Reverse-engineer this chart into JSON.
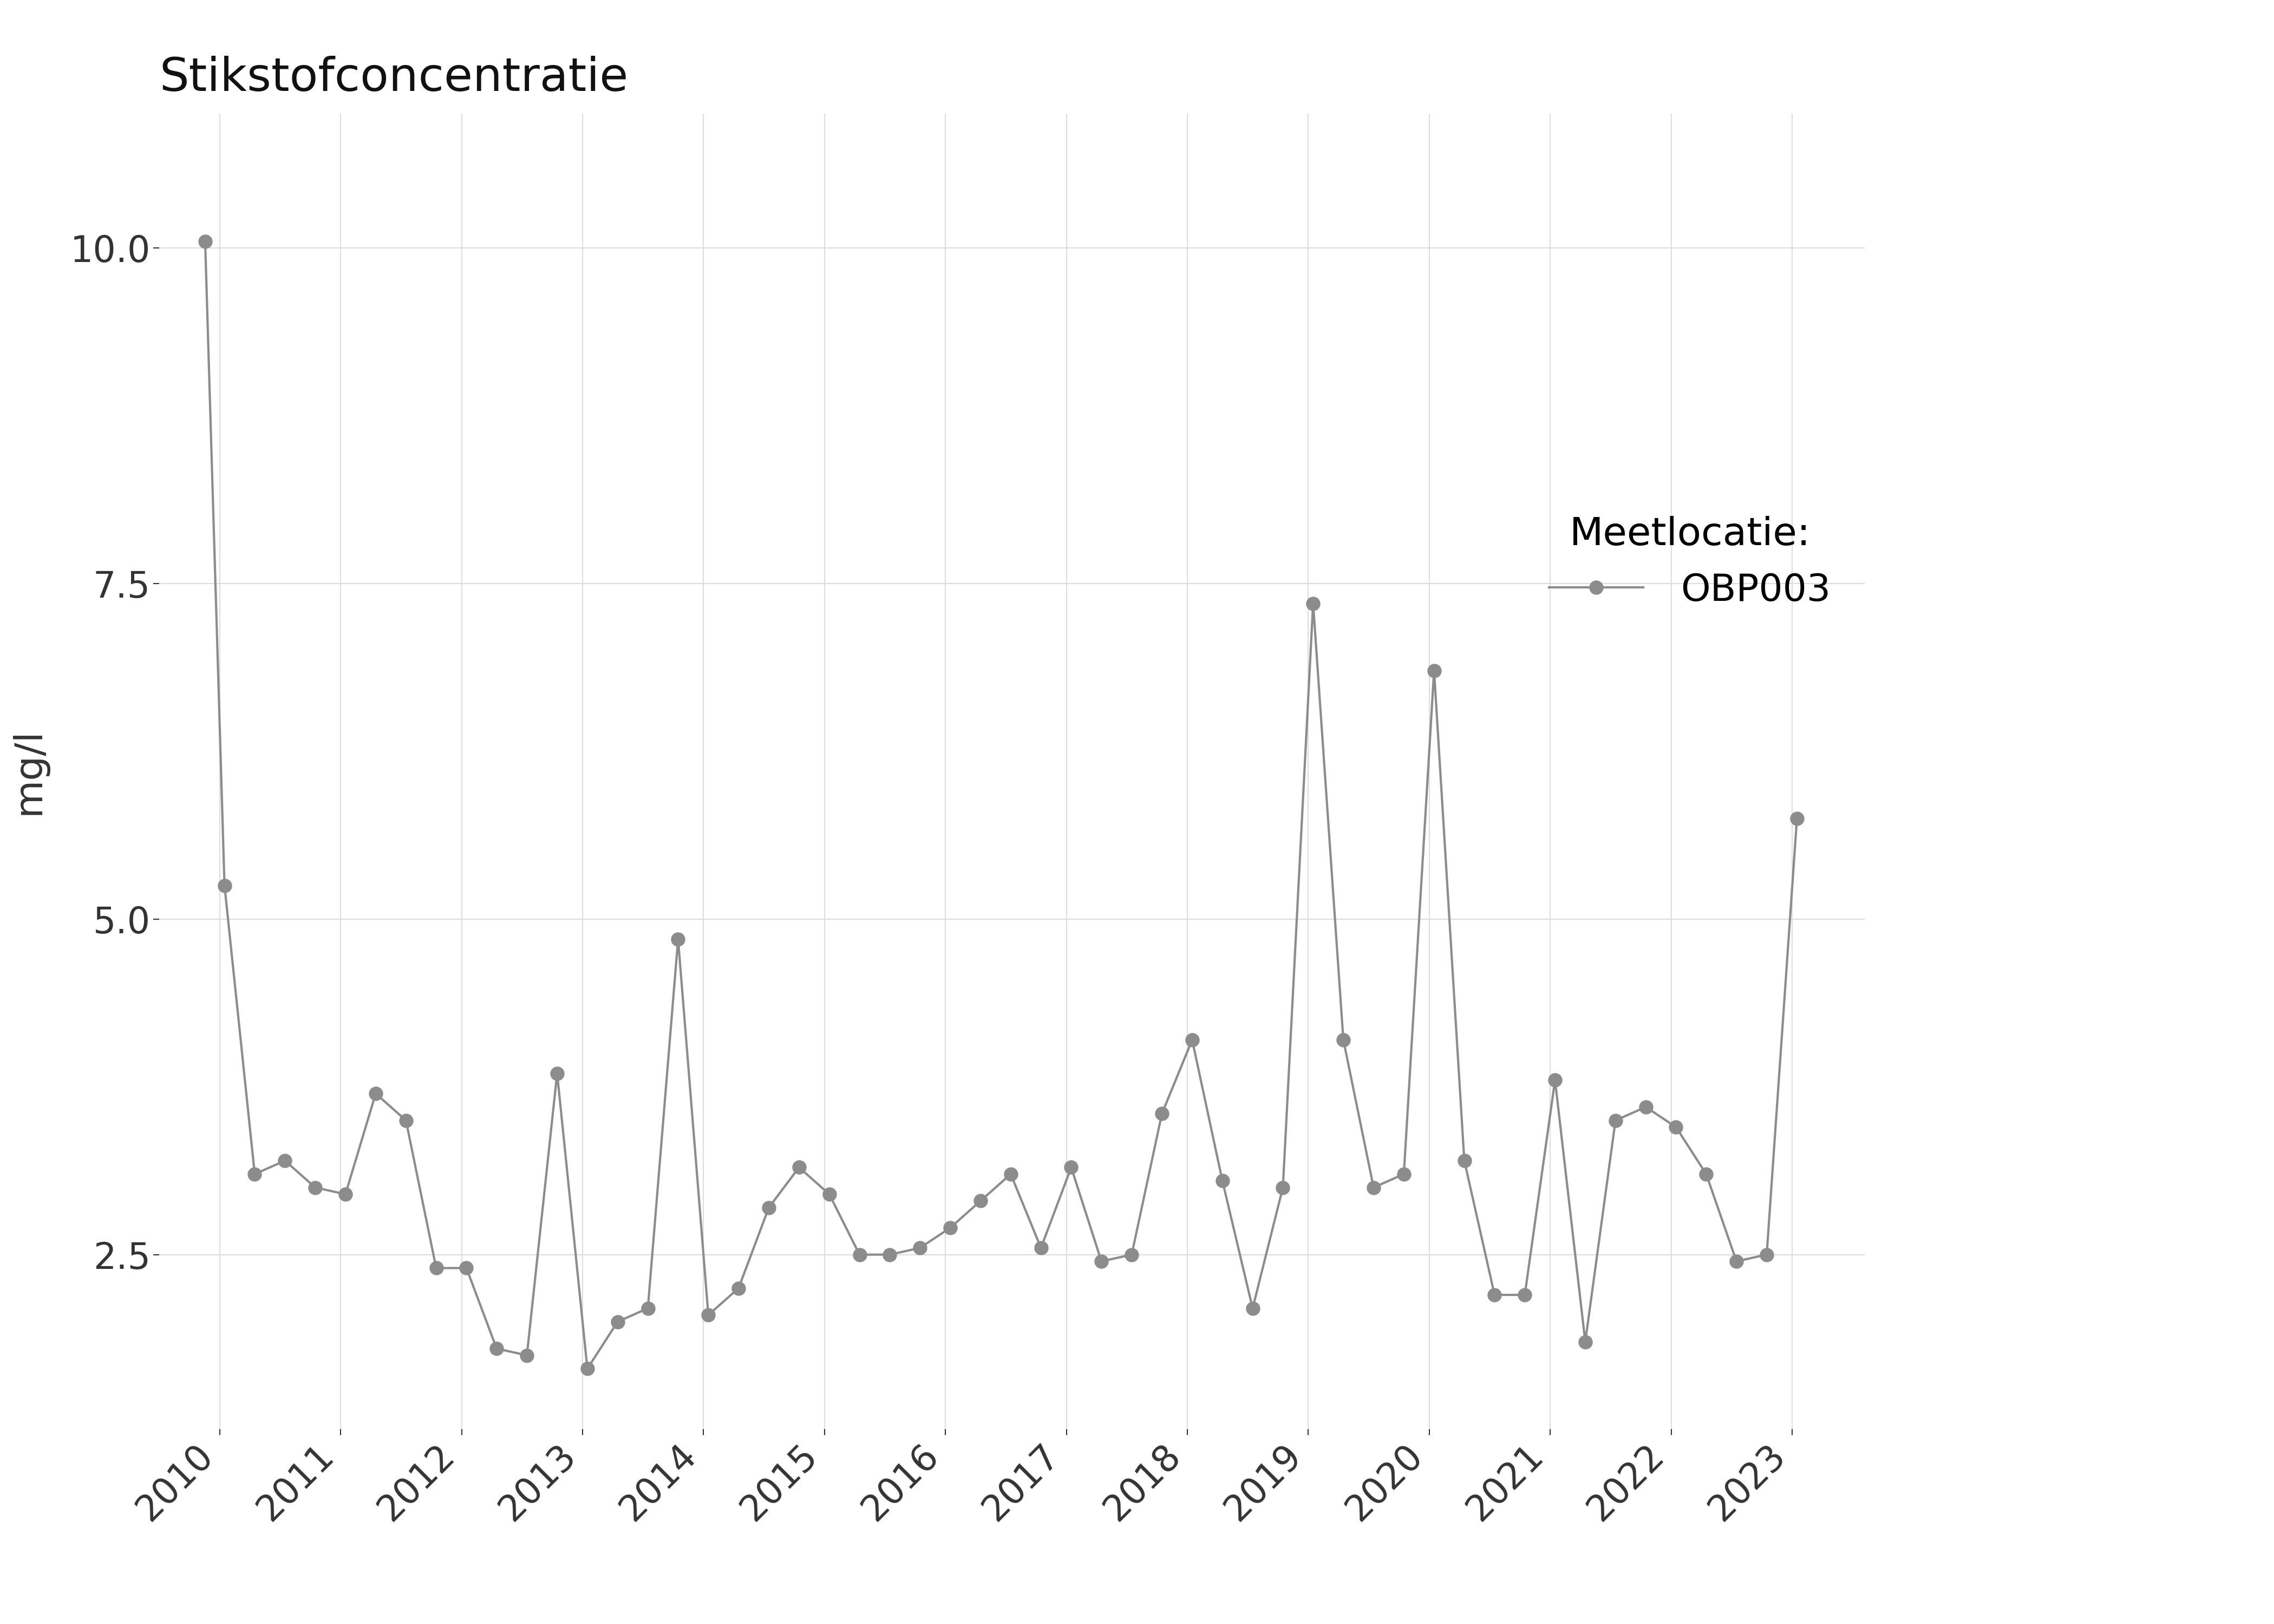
{
  "title": "Stikstofconcentratie",
  "ylabel": "mg/l",
  "legend_title": "Meetlocatie:",
  "legend_label": "OBP003",
  "line_color": "#8c8c8c",
  "marker_color": "#8c8c8c",
  "background_color": "#ffffff",
  "grid_color": "#dddddd",
  "ylim": [
    1.2,
    11.0
  ],
  "yticks": [
    2.5,
    5.0,
    7.5,
    10.0
  ],
  "title_fontsize": 62,
  "label_fontsize": 52,
  "tick_fontsize": 48,
  "legend_fontsize": 50,
  "legend_title_fontsize": 52,
  "marker_size": 18,
  "line_width": 3.0,
  "dates": [
    2009.88,
    2010.04,
    2010.29,
    2010.54,
    2010.79,
    2011.04,
    2011.29,
    2011.54,
    2011.79,
    2012.04,
    2012.29,
    2012.54,
    2012.79,
    2013.04,
    2013.29,
    2013.54,
    2013.79,
    2014.04,
    2014.29,
    2014.54,
    2014.79,
    2015.04,
    2015.29,
    2015.54,
    2015.79,
    2016.04,
    2016.29,
    2016.54,
    2016.79,
    2017.04,
    2017.29,
    2017.54,
    2017.79,
    2018.04,
    2018.29,
    2018.54,
    2018.79,
    2019.04,
    2019.29,
    2019.54,
    2019.79,
    2020.04,
    2020.29,
    2020.54,
    2020.79,
    2021.04,
    2021.29,
    2021.54,
    2021.79,
    2022.04,
    2022.29,
    2022.54,
    2022.79,
    2023.04
  ],
  "values": [
    10.05,
    5.25,
    3.1,
    3.2,
    3.0,
    2.95,
    3.7,
    3.5,
    2.4,
    2.4,
    1.8,
    1.75,
    3.85,
    1.65,
    2.0,
    2.1,
    4.85,
    2.05,
    2.25,
    2.85,
    3.15,
    2.95,
    2.5,
    2.5,
    2.55,
    2.7,
    2.9,
    3.1,
    2.55,
    3.15,
    2.45,
    2.5,
    3.55,
    4.1,
    3.05,
    2.1,
    3.0,
    7.35,
    4.1,
    3.0,
    3.1,
    6.85,
    3.2,
    2.2,
    2.2,
    3.8,
    1.85,
    3.5,
    3.6,
    3.45,
    3.1,
    2.45,
    2.5,
    5.75
  ],
  "xlim_start": 2009.5,
  "xlim_end": 2023.6,
  "xtick_positions": [
    2010,
    2011,
    2012,
    2013,
    2014,
    2015,
    2016,
    2017,
    2018,
    2019,
    2020,
    2021,
    2022,
    2023
  ],
  "xtick_labels": [
    "2010",
    "2011",
    "2012",
    "2013",
    "2014",
    "2015",
    "2016",
    "2017",
    "2018",
    "2019",
    "2020",
    "2021",
    "2022",
    "2023"
  ]
}
